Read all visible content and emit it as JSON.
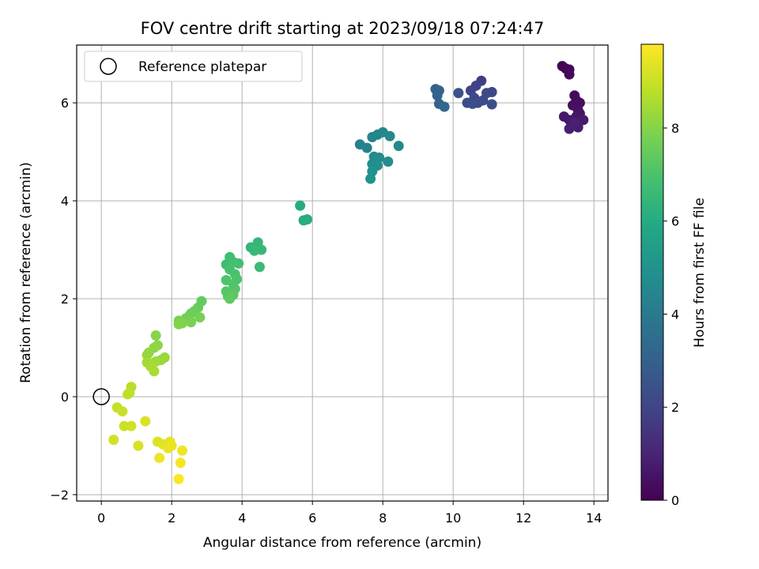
{
  "chart_data": {
    "type": "scatter",
    "title": "FOV centre drift starting at 2023/09/18 07:24:47",
    "xlabel": "Angular distance from reference (arcmin)",
    "ylabel": "Rotation from reference (arcmin)",
    "xlim": [
      -0.7,
      14.4
    ],
    "ylim": [
      -2.13,
      7.18
    ],
    "xticks": [
      0,
      2,
      4,
      6,
      8,
      10,
      12,
      14
    ],
    "yticks": [
      -2,
      0,
      2,
      4,
      6
    ],
    "grid": true,
    "legend": {
      "position": "top-left",
      "entries": [
        "Reference platepar"
      ]
    },
    "reference_point": {
      "x": 0,
      "y": 0
    },
    "colorbar": {
      "label": "Hours from first FF file",
      "range": [
        0,
        9.8
      ],
      "ticks": [
        0,
        2,
        4,
        6,
        8
      ],
      "colormap": "viridis"
    },
    "points": [
      {
        "x": 13.1,
        "y": 6.75,
        "c": 0.05
      },
      {
        "x": 13.2,
        "y": 6.7,
        "c": 0.1
      },
      {
        "x": 13.3,
        "y": 6.68,
        "c": 0.15
      },
      {
        "x": 13.3,
        "y": 6.58,
        "c": 0.2
      },
      {
        "x": 13.45,
        "y": 6.15,
        "c": 0.25
      },
      {
        "x": 13.5,
        "y": 6.05,
        "c": 0.3
      },
      {
        "x": 13.6,
        "y": 6.0,
        "c": 0.35
      },
      {
        "x": 13.4,
        "y": 5.95,
        "c": 0.4
      },
      {
        "x": 13.55,
        "y": 5.85,
        "c": 0.45
      },
      {
        "x": 13.6,
        "y": 5.78,
        "c": 0.5
      },
      {
        "x": 13.5,
        "y": 5.72,
        "c": 0.55
      },
      {
        "x": 13.3,
        "y": 5.65,
        "c": 0.6
      },
      {
        "x": 13.15,
        "y": 5.72,
        "c": 0.65
      },
      {
        "x": 13.7,
        "y": 5.65,
        "c": 0.7
      },
      {
        "x": 13.4,
        "y": 5.55,
        "c": 0.75
      },
      {
        "x": 13.55,
        "y": 5.5,
        "c": 0.8
      },
      {
        "x": 13.3,
        "y": 5.47,
        "c": 0.85
      },
      {
        "x": 13.45,
        "y": 5.6,
        "c": 0.9
      },
      {
        "x": 10.8,
        "y": 6.45,
        "c": 1.8
      },
      {
        "x": 10.65,
        "y": 6.35,
        "c": 1.9
      },
      {
        "x": 10.5,
        "y": 6.25,
        "c": 2.0
      },
      {
        "x": 10.6,
        "y": 6.1,
        "c": 2.05
      },
      {
        "x": 11.1,
        "y": 6.22,
        "c": 2.1
      },
      {
        "x": 10.95,
        "y": 6.2,
        "c": 2.15
      },
      {
        "x": 10.85,
        "y": 6.05,
        "c": 2.2
      },
      {
        "x": 10.4,
        "y": 6.0,
        "c": 2.25
      },
      {
        "x": 10.7,
        "y": 6.0,
        "c": 2.3
      },
      {
        "x": 11.1,
        "y": 5.97,
        "c": 2.35
      },
      {
        "x": 10.55,
        "y": 5.98,
        "c": 2.4
      },
      {
        "x": 10.15,
        "y": 6.2,
        "c": 2.45
      },
      {
        "x": 9.5,
        "y": 6.28,
        "c": 3.0
      },
      {
        "x": 9.6,
        "y": 6.25,
        "c": 3.05
      },
      {
        "x": 9.55,
        "y": 6.15,
        "c": 3.1
      },
      {
        "x": 9.6,
        "y": 5.98,
        "c": 3.15
      },
      {
        "x": 9.75,
        "y": 5.92,
        "c": 3.2
      },
      {
        "x": 7.35,
        "y": 5.15,
        "c": 4.3
      },
      {
        "x": 7.55,
        "y": 5.08,
        "c": 4.35
      },
      {
        "x": 7.7,
        "y": 5.3,
        "c": 4.4
      },
      {
        "x": 7.85,
        "y": 5.35,
        "c": 4.45
      },
      {
        "x": 8.0,
        "y": 5.4,
        "c": 4.5
      },
      {
        "x": 8.2,
        "y": 5.32,
        "c": 4.55
      },
      {
        "x": 8.45,
        "y": 5.12,
        "c": 4.6
      },
      {
        "x": 7.75,
        "y": 4.9,
        "c": 4.65
      },
      {
        "x": 7.9,
        "y": 4.88,
        "c": 4.7
      },
      {
        "x": 7.7,
        "y": 4.75,
        "c": 4.75
      },
      {
        "x": 8.15,
        "y": 4.8,
        "c": 4.8
      },
      {
        "x": 7.85,
        "y": 4.72,
        "c": 4.85
      },
      {
        "x": 7.7,
        "y": 4.6,
        "c": 4.9
      },
      {
        "x": 7.65,
        "y": 4.45,
        "c": 4.95
      },
      {
        "x": 5.65,
        "y": 3.9,
        "c": 6.0
      },
      {
        "x": 5.75,
        "y": 3.6,
        "c": 6.05
      },
      {
        "x": 5.85,
        "y": 3.62,
        "c": 6.1
      },
      {
        "x": 4.25,
        "y": 3.05,
        "c": 6.4
      },
      {
        "x": 4.45,
        "y": 3.15,
        "c": 6.45
      },
      {
        "x": 4.55,
        "y": 3.0,
        "c": 6.5
      },
      {
        "x": 4.35,
        "y": 2.98,
        "c": 6.55
      },
      {
        "x": 4.5,
        "y": 2.65,
        "c": 6.6
      },
      {
        "x": 3.55,
        "y": 2.7,
        "c": 6.7
      },
      {
        "x": 3.65,
        "y": 2.85,
        "c": 6.75
      },
      {
        "x": 3.75,
        "y": 2.75,
        "c": 6.8
      },
      {
        "x": 3.9,
        "y": 2.72,
        "c": 6.85
      },
      {
        "x": 3.65,
        "y": 2.6,
        "c": 6.9
      },
      {
        "x": 3.8,
        "y": 2.5,
        "c": 6.95
      },
      {
        "x": 3.85,
        "y": 2.4,
        "c": 7.0
      },
      {
        "x": 3.55,
        "y": 2.38,
        "c": 7.05
      },
      {
        "x": 3.75,
        "y": 2.3,
        "c": 7.1
      },
      {
        "x": 3.8,
        "y": 2.2,
        "c": 7.15
      },
      {
        "x": 3.55,
        "y": 2.15,
        "c": 7.2
      },
      {
        "x": 3.6,
        "y": 2.05,
        "c": 7.25
      },
      {
        "x": 3.75,
        "y": 2.08,
        "c": 7.3
      },
      {
        "x": 3.65,
        "y": 2.0,
        "c": 7.35
      },
      {
        "x": 2.85,
        "y": 1.95,
        "c": 7.45
      },
      {
        "x": 2.75,
        "y": 1.82,
        "c": 7.5
      },
      {
        "x": 2.65,
        "y": 1.75,
        "c": 7.55
      },
      {
        "x": 2.55,
        "y": 1.7,
        "c": 7.6
      },
      {
        "x": 2.5,
        "y": 1.65,
        "c": 7.65
      },
      {
        "x": 2.4,
        "y": 1.6,
        "c": 7.7
      },
      {
        "x": 2.8,
        "y": 1.62,
        "c": 7.75
      },
      {
        "x": 2.55,
        "y": 1.52,
        "c": 7.8
      },
      {
        "x": 2.2,
        "y": 1.55,
        "c": 7.85
      },
      {
        "x": 2.3,
        "y": 1.5,
        "c": 7.9
      },
      {
        "x": 2.2,
        "y": 1.48,
        "c": 7.95
      },
      {
        "x": 1.55,
        "y": 1.25,
        "c": 8.05
      },
      {
        "x": 1.6,
        "y": 1.05,
        "c": 8.1
      },
      {
        "x": 1.5,
        "y": 1.0,
        "c": 8.15
      },
      {
        "x": 1.35,
        "y": 0.9,
        "c": 8.2
      },
      {
        "x": 1.3,
        "y": 0.85,
        "c": 8.25
      },
      {
        "x": 1.8,
        "y": 0.8,
        "c": 8.3
      },
      {
        "x": 1.7,
        "y": 0.75,
        "c": 8.35
      },
      {
        "x": 1.55,
        "y": 0.72,
        "c": 8.4
      },
      {
        "x": 1.3,
        "y": 0.7,
        "c": 8.45
      },
      {
        "x": 1.4,
        "y": 0.62,
        "c": 8.5
      },
      {
        "x": 1.5,
        "y": 0.52,
        "c": 8.55
      },
      {
        "x": 0.85,
        "y": 0.2,
        "c": 8.75
      },
      {
        "x": 0.8,
        "y": 0.08,
        "c": 8.8
      },
      {
        "x": 0.75,
        "y": 0.05,
        "c": 8.85
      },
      {
        "x": 0.45,
        "y": -0.22,
        "c": 8.95
      },
      {
        "x": 0.6,
        "y": -0.3,
        "c": 9.0
      },
      {
        "x": 0.65,
        "y": -0.6,
        "c": 9.05
      },
      {
        "x": 0.85,
        "y": -0.6,
        "c": 9.1
      },
      {
        "x": 0.35,
        "y": -0.88,
        "c": 9.15
      },
      {
        "x": 1.05,
        "y": -1.0,
        "c": 9.2
      },
      {
        "x": 1.25,
        "y": -0.5,
        "c": 9.25
      },
      {
        "x": 1.6,
        "y": -0.92,
        "c": 9.3
      },
      {
        "x": 1.75,
        "y": -0.97,
        "c": 9.35
      },
      {
        "x": 1.95,
        "y": -0.92,
        "c": 9.4
      },
      {
        "x": 1.9,
        "y": -1.05,
        "c": 9.45
      },
      {
        "x": 2.0,
        "y": -1.0,
        "c": 9.5
      },
      {
        "x": 1.65,
        "y": -1.25,
        "c": 9.55
      },
      {
        "x": 2.3,
        "y": -1.1,
        "c": 9.6
      },
      {
        "x": 2.25,
        "y": -1.35,
        "c": 9.65
      },
      {
        "x": 2.2,
        "y": -1.68,
        "c": 9.75
      }
    ]
  }
}
